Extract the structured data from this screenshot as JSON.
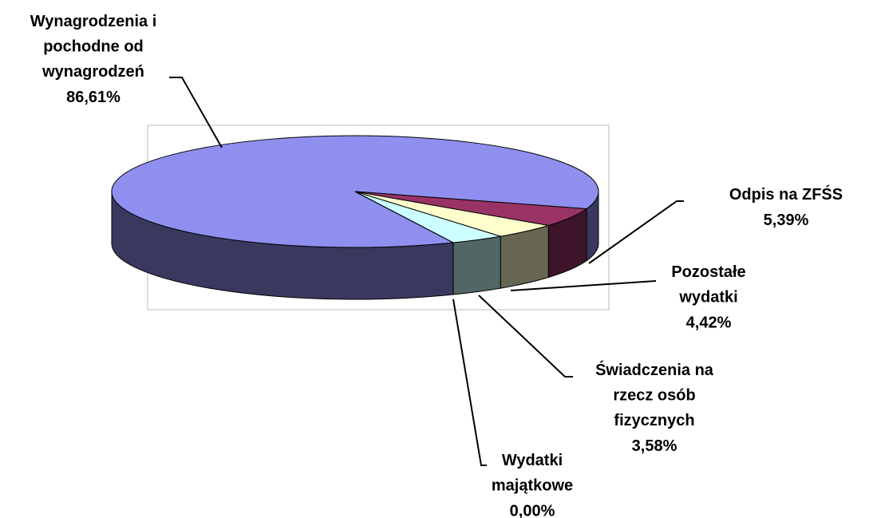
{
  "chart_data": {
    "type": "pie",
    "categories": [
      "Wynagrodzenia i\npochodne od\nwynagrodzeń",
      "Odpis na ZFŚS",
      "Pozostałe\nwydatki",
      "Świadczenia na\nrzecz osób\nfizycznych",
      "Wydatki\nmajątkowe"
    ],
    "values": [
      86.61,
      5.39,
      4.42,
      3.58,
      0
    ],
    "value_labels": [
      "86,61%",
      "5,39%",
      "4,42%",
      "3,58%",
      "0,00%"
    ],
    "colors": [
      "#8f8fef",
      "#993366",
      "#ffffcc",
      "#ccffff",
      "#ffff99"
    ]
  }
}
